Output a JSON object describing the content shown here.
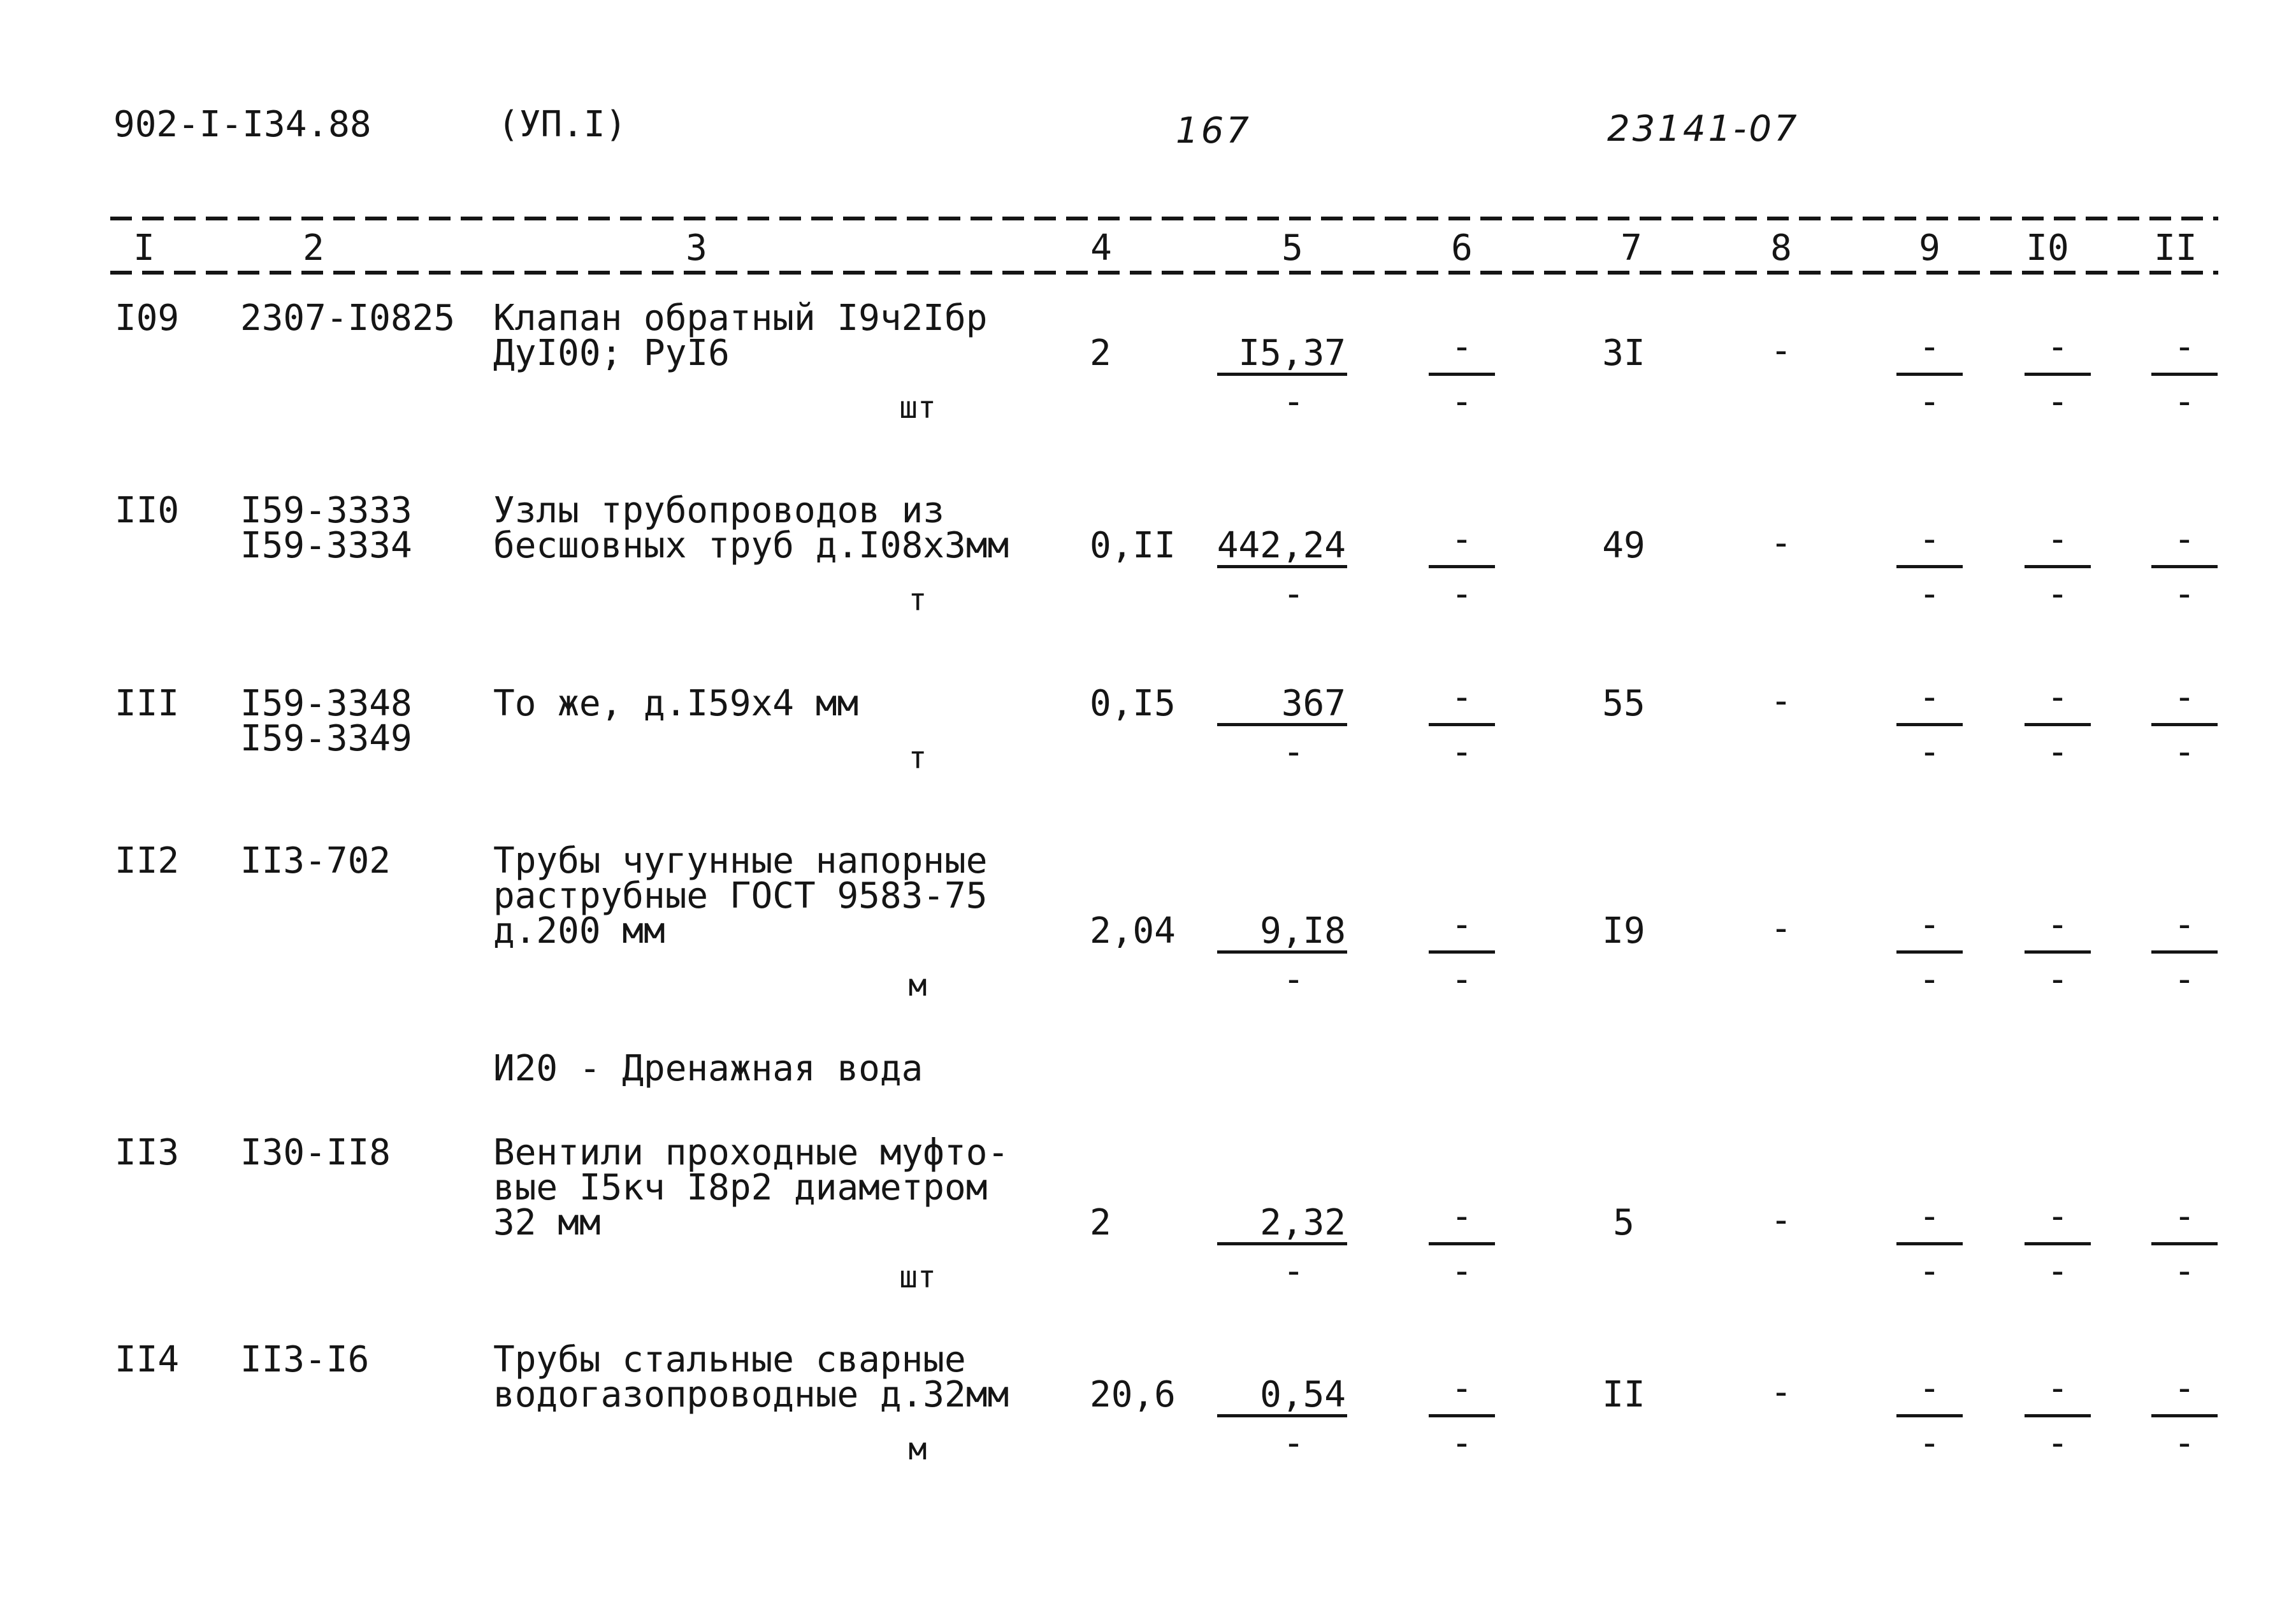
{
  "header": {
    "doc_code": "902-I-I34.88",
    "album": "(УП.I)",
    "page_number": "167",
    "archive_number": "23141-07"
  },
  "column_numbers": [
    "I",
    "2",
    "3",
    "4",
    "5",
    "6",
    "7",
    "8",
    "9",
    "I0",
    "II"
  ],
  "rows": [
    {
      "num": "I09",
      "codes": [
        "2307-I0825"
      ],
      "desc": [
        "Клапан обратный I9ч2Iбр",
        "ДуI00; РуI6"
      ],
      "unit": "шт",
      "qty": "2",
      "col5_top": "I5,37",
      "col5_bottom": "-",
      "col6_top": "-",
      "col6_bottom": "-",
      "col7": "3I",
      "col8": "-",
      "col9_top": "-",
      "col9_bottom": "-",
      "col10_top": "-",
      "col10_bottom": "-",
      "col11_top": "-",
      "col11_bottom": "-"
    },
    {
      "num": "II0",
      "codes": [
        "I59-3333",
        "I59-3334"
      ],
      "desc": [
        "Узлы трубопроводов из",
        "бесшовных труб д.I08х3мм"
      ],
      "unit": "т",
      "qty": "0,II",
      "col5_top": "442,24",
      "col5_bottom": "-",
      "col6_top": "-",
      "col6_bottom": "-",
      "col7": "49",
      "col8": "-",
      "col9_top": "-",
      "col9_bottom": "-",
      "col10_top": "-",
      "col10_bottom": "-",
      "col11_top": "-",
      "col11_bottom": "-"
    },
    {
      "num": "III",
      "codes": [
        "I59-3348",
        "I59-3349"
      ],
      "desc": [
        "То же, д.I59х4 мм"
      ],
      "unit": "т",
      "qty": "0,I5",
      "col5_top": "367",
      "col5_bottom": "-",
      "col6_top": "-",
      "col6_bottom": "-",
      "col7": "55",
      "col8": "-",
      "col9_top": "-",
      "col9_bottom": "-",
      "col10_top": "-",
      "col10_bottom": "-",
      "col11_top": "-",
      "col11_bottom": "-"
    },
    {
      "num": "II2",
      "codes": [
        "II3-702"
      ],
      "desc": [
        "Трубы чугунные напорные",
        "раструбные ГОСТ 9583-75",
        "д.200 мм"
      ],
      "unit": "м",
      "qty": "2,04",
      "col5_top": "9,I8",
      "col5_bottom": "-",
      "col6_top": "-",
      "col6_bottom": "-",
      "col7": "I9",
      "col8": "-",
      "col9_top": "-",
      "col9_bottom": "-",
      "col10_top": "-",
      "col10_bottom": "-",
      "col11_top": "-",
      "col11_bottom": "-"
    },
    {
      "num": "II3",
      "codes": [
        "I30-II8"
      ],
      "desc": [
        "Вентили проходные муфто-",
        "вые I5кч I8р2 диаметром",
        "32 мм"
      ],
      "unit": "шт",
      "qty": "2",
      "col5_top": "2,32",
      "col5_bottom": "-",
      "col6_top": "-",
      "col6_bottom": "-",
      "col7": "5",
      "col8": "-",
      "col9_top": "-",
      "col9_bottom": "-",
      "col10_top": "-",
      "col10_bottom": "-",
      "col11_top": "-",
      "col11_bottom": "-"
    },
    {
      "num": "II4",
      "codes": [
        "II3-I6"
      ],
      "desc": [
        "Трубы стальные сварные",
        "водогазопроводные д.32мм"
      ],
      "unit": "м",
      "qty": "20,6",
      "col5_top": "0,54",
      "col5_bottom": "-",
      "col6_top": "-",
      "col6_bottom": "-",
      "col7": "II",
      "col8": "-",
      "col9_top": "-",
      "col9_bottom": "-",
      "col10_top": "-",
      "col10_bottom": "-",
      "col11_top": "-",
      "col11_bottom": "-"
    }
  ],
  "section": {
    "title": "И20 - Дренажная вода"
  }
}
